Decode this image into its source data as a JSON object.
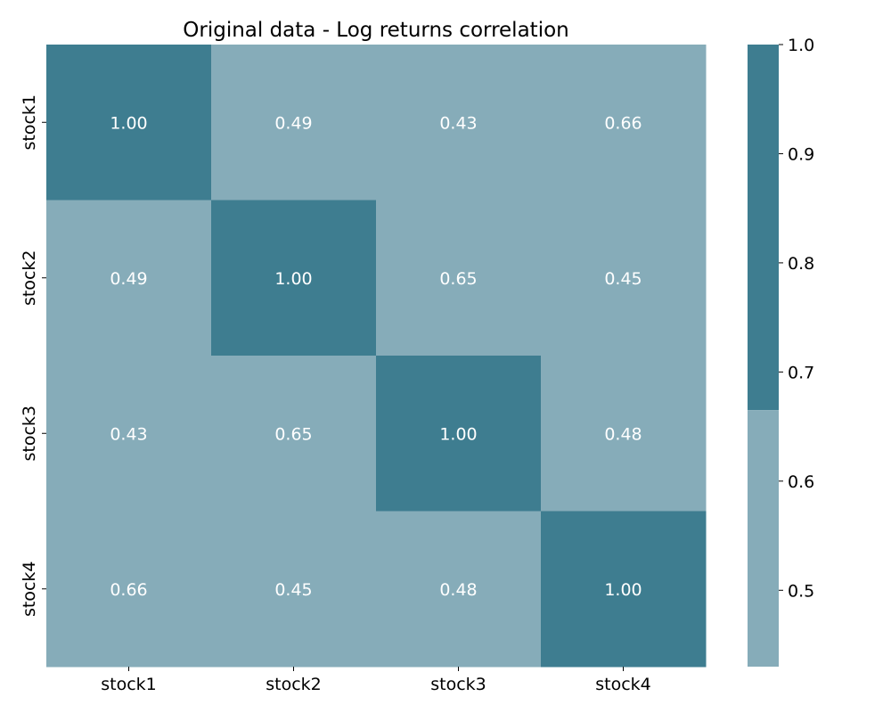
{
  "chart_data": {
    "type": "heatmap",
    "title": "Original data - Log returns correlation",
    "xlabel": "",
    "ylabel": "",
    "x_categories": [
      "stock1",
      "stock2",
      "stock3",
      "stock4"
    ],
    "y_categories": [
      "stock1",
      "stock2",
      "stock3",
      "stock4"
    ],
    "values": [
      [
        1.0,
        0.49,
        0.43,
        0.66
      ],
      [
        0.49,
        1.0,
        0.65,
        0.45
      ],
      [
        0.43,
        0.65,
        1.0,
        0.48
      ],
      [
        0.66,
        0.45,
        0.48,
        1.0
      ]
    ],
    "annotation_format": "2 decimals",
    "colorbar": {
      "range": [
        0.43,
        1.0
      ],
      "ticks": [
        0.5,
        0.6,
        0.7,
        0.8,
        0.9,
        1.0
      ],
      "tick_labels": [
        "0.5",
        "0.6",
        "0.7",
        "0.8",
        "0.9",
        "1.0"
      ],
      "threshold": 0.665,
      "colors": {
        "low": "#86acb9",
        "high": "#3e7d90"
      },
      "position": "right"
    },
    "grid": false,
    "legend": "none",
    "annotation_color": "#ffffff"
  }
}
